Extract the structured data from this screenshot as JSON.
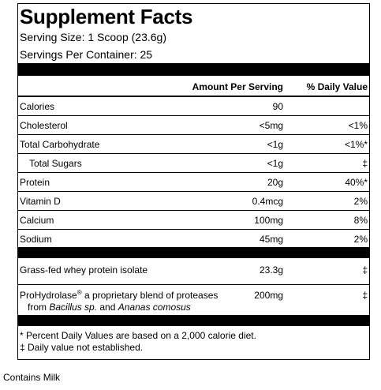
{
  "title": "Supplement Facts",
  "serving_size": "Serving Size: 1 Scoop (23.6g)",
  "servings_per_container": "Servings Per Container: 25",
  "header": {
    "amount_per_serving": "Amount Per Serving",
    "daily_value": "% Daily Value"
  },
  "nutrients": [
    {
      "label": "Calories",
      "amount": "90",
      "dv": ""
    },
    {
      "label": "Cholesterol",
      "amount": "<5mg",
      "dv": "<1%"
    },
    {
      "label": "Total Carbohydrate",
      "amount": "<1g",
      "dv": "<1%*"
    },
    {
      "label": "Total Sugars",
      "amount": "<1g",
      "dv": "‡"
    },
    {
      "label": "Protein",
      "amount": "20g",
      "dv": "40%*"
    },
    {
      "label": "Vitamin D",
      "amount": "0.4mcg",
      "dv": "2%"
    },
    {
      "label": "Calcium",
      "amount": "100mg",
      "dv": "8%"
    },
    {
      "label": "Sodium",
      "amount": "45mg",
      "dv": "2%"
    }
  ],
  "ingredients": [
    {
      "label": "Grass-fed whey protein isolate",
      "amount": "23.3g",
      "dv": "‡"
    },
    {
      "name": "ProHydrolase",
      "registered": "®",
      "desc": " a proprietary blend of proteases",
      "from": "from ",
      "species1": "Bacillus sp.",
      "and": " and ",
      "species2": "Ananas comosus",
      "amount": "200mg",
      "dv": "‡"
    }
  ],
  "footnotes": {
    "line1": "* Percent Daily Values are based on a 2,000 calorie diet.",
    "line2": "‡ Daily value not established."
  },
  "contains": "Contains Milk"
}
